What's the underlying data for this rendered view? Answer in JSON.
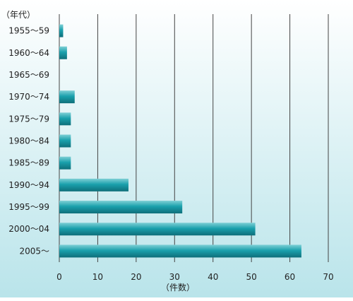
{
  "chart_data": {
    "type": "bar",
    "orientation": "horizontal",
    "categories": [
      "1955～59",
      "1960～64",
      "1965～69",
      "1970～74",
      "1975～79",
      "1980～84",
      "1985～89",
      "1990～94",
      "1995～99",
      "2000～04",
      "2005～"
    ],
    "values": [
      1,
      2,
      0,
      4,
      3,
      3,
      3,
      18,
      32,
      51,
      63
    ],
    "ylabel": "（年代）",
    "xlabel": "（件数）",
    "xlim": [
      0,
      70
    ],
    "xticks": [
      0,
      10,
      20,
      30,
      40,
      50,
      60,
      70
    ],
    "grid": true,
    "colors": {
      "bar_top": "#7fd0d6",
      "bar_mid": "#1aa0ac",
      "bar_bottom": "#0e6f7a",
      "grid": "#444444",
      "bg_top": "#ffffff",
      "bg_bottom": "#b9e4ea"
    }
  }
}
